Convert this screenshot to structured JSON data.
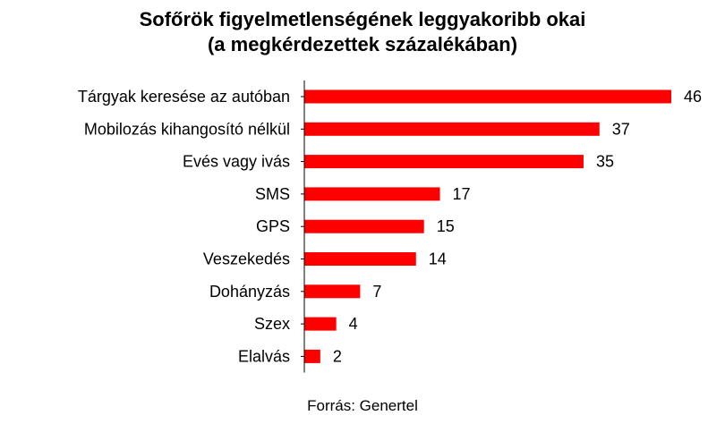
{
  "chart_data": {
    "type": "bar",
    "orientation": "horizontal",
    "title": "Sofőrök figyelmetlenségének leggyakoribb okai",
    "subtitle": "(a megkérdezettek százalékában)",
    "categories": [
      "Tárgyak keresése az autóban",
      "Mobilozás kihangosító nélkül",
      "Evés vagy ivás",
      "SMS",
      "GPS",
      "Veszekedés",
      "Dohányzás",
      "Szex",
      "Elalvás"
    ],
    "values": [
      46,
      37,
      35,
      17,
      15,
      14,
      7,
      4,
      2
    ],
    "xlim": [
      0,
      46
    ],
    "bar_color": "#ff0000",
    "grid": false,
    "data_labels": true
  },
  "source": "Forrás: Genertel"
}
